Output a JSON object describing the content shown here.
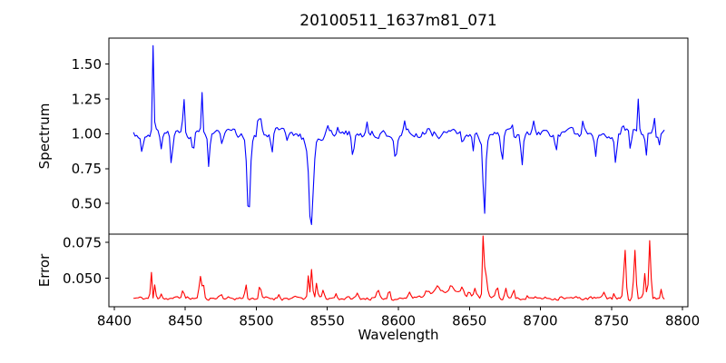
{
  "chart_data": {
    "type": "line",
    "title": "20100511_1637m81_071",
    "xlabel": "Wavelength",
    "xlim": [
      8396.2,
      8803.8
    ],
    "x_ticks": [
      8400,
      8450,
      8500,
      8550,
      8600,
      8650,
      8700,
      8750,
      8800
    ],
    "x_tick_labels": [
      "8400",
      "8450",
      "8500",
      "8550",
      "8600",
      "8650",
      "8700",
      "8750",
      "8800"
    ],
    "x_start": 8413.5,
    "x_end": 8788,
    "sample_step": 1.15,
    "background": "#ffffff",
    "axis_color": "#000000",
    "grid": false,
    "legend": false,
    "subplots": [
      {
        "ylabel": "Spectrum",
        "color": "#0000ff",
        "ylim": [
          0.28,
          1.687
        ],
        "y_ticks": [
          0.5,
          0.75,
          1.0,
          1.25,
          1.5
        ],
        "y_tick_labels": [
          "0.50",
          "0.75",
          "1.00",
          "1.25",
          "1.50"
        ],
        "baseline": 1.0,
        "noise_amp": 0.024,
        "noise_corr": 0.55,
        "seed": 3,
        "max_value": 1.64,
        "min_value": 0.33,
        "features": [
          [
            8419.5,
            -0.13,
            1.2
          ],
          [
            8427.3,
            0.64,
            0.75
          ],
          [
            8429,
            0.1,
            0.5
          ],
          [
            8433,
            -0.12,
            0.9
          ],
          [
            8440.3,
            -0.21,
            1.1
          ],
          [
            8448.8,
            0.32,
            0.75
          ],
          [
            8455.5,
            -0.16,
            0.9
          ],
          [
            8461.8,
            0.31,
            0.75
          ],
          [
            8466.5,
            -0.24,
            1.0
          ],
          [
            8476,
            -0.1,
            0.9
          ],
          [
            8494.6,
            -0.53,
            1.5
          ],
          [
            8494.6,
            -0.06,
            4
          ],
          [
            8501.5,
            0.17,
            0.7
          ],
          [
            8503.3,
            0.09,
            0.6
          ],
          [
            8511,
            -0.15,
            1.1
          ],
          [
            8522,
            -0.07,
            1
          ],
          [
            8538.5,
            -0.57,
            1.9
          ],
          [
            8538.5,
            -0.1,
            5.5
          ],
          [
            8550,
            0.05,
            1
          ],
          [
            8557,
            0.06,
            1
          ],
          [
            8568,
            -0.16,
            1.1
          ],
          [
            8578,
            0.09,
            0.8
          ],
          [
            8598,
            -0.17,
            1.1
          ],
          [
            8604,
            0.1,
            0.8
          ],
          [
            8621,
            0.07,
            0.9
          ],
          [
            8645,
            -0.08,
            1
          ],
          [
            8652.5,
            -0.12,
            0.9
          ],
          [
            8660.5,
            -0.51,
            1.2
          ],
          [
            8660.5,
            -0.09,
            3.5
          ],
          [
            8673,
            -0.21,
            1.1
          ],
          [
            8680,
            0.08,
            0.8
          ],
          [
            8687,
            -0.23,
            1.2
          ],
          [
            8695,
            0.08,
            0.9
          ],
          [
            8711,
            -0.13,
            1.0
          ],
          [
            8730,
            0.1,
            0.8
          ],
          [
            8739,
            -0.14,
            1.0
          ],
          [
            8753,
            -0.19,
            1.0
          ],
          [
            8758,
            0.09,
            0.7
          ],
          [
            8763.5,
            -0.17,
            0.8
          ],
          [
            8769,
            0.23,
            0.7
          ],
          [
            8774.5,
            -0.16,
            0.8
          ],
          [
            8780,
            0.15,
            0.7
          ],
          [
            8784,
            -0.07,
            0.6
          ]
        ]
      },
      {
        "ylabel": "Error",
        "color": "#ff0000",
        "ylim": [
          0.0301,
          0.0808
        ],
        "y_ticks": [
          0.05,
          0.075
        ],
        "y_tick_labels": [
          "0.050",
          "0.075"
        ],
        "baseline": 0.036,
        "noise_amp": 0.0011,
        "noise_corr": 0.5,
        "seed": 11,
        "max_value": 0.078,
        "min_value": 0.034,
        "features": [
          [
            8425.8,
            0.026,
            0.55
          ],
          [
            8428.8,
            0.0145,
            0.5
          ],
          [
            8433,
            0.004,
            1
          ],
          [
            8448.5,
            0.0075,
            0.9
          ],
          [
            8460.5,
            0.016,
            1.0
          ],
          [
            8462.5,
            0.011,
            0.8
          ],
          [
            8475,
            0.003,
            1.5
          ],
          [
            8492.5,
            0.0105,
            0.8
          ],
          [
            8502.5,
            0.009,
            0.9
          ],
          [
            8516,
            0.003,
            1
          ],
          [
            8536.5,
            0.0145,
            0.7
          ],
          [
            8539,
            0.021,
            0.9
          ],
          [
            8542.5,
            0.01,
            0.9
          ],
          [
            8547,
            0.005,
            1
          ],
          [
            8556,
            0.003,
            1
          ],
          [
            8571,
            0.003,
            1
          ],
          [
            8585.5,
            0.006,
            0.8
          ],
          [
            8593.5,
            0.0075,
            0.8
          ],
          [
            8608,
            0.004,
            1
          ],
          [
            8633,
            0.005,
            16
          ],
          [
            8620,
            0.003,
            2
          ],
          [
            8628,
            0.0035,
            2
          ],
          [
            8637,
            0.004,
            2
          ],
          [
            8645,
            0.0045,
            1.5
          ],
          [
            8650,
            0.004,
            1.2
          ],
          [
            8654,
            0.005,
            1
          ],
          [
            8659.8,
            0.0415,
            0.8
          ],
          [
            8661.5,
            0.015,
            1.6
          ],
          [
            8669.5,
            0.0085,
            1
          ],
          [
            8675.5,
            0.009,
            1
          ],
          [
            8681,
            0.006,
            1
          ],
          [
            8691,
            0.003,
            1
          ],
          [
            8715,
            0.002,
            1.5
          ],
          [
            8745,
            0.004,
            1
          ],
          [
            8752,
            0.004,
            0.8
          ],
          [
            8759.5,
            0.0345,
            1.1
          ],
          [
            8766.5,
            0.0335,
            1.1
          ],
          [
            8773.5,
            0.016,
            0.9
          ],
          [
            8777,
            0.04,
            1.0
          ],
          [
            8785,
            0.006,
            0.7
          ]
        ]
      }
    ]
  }
}
